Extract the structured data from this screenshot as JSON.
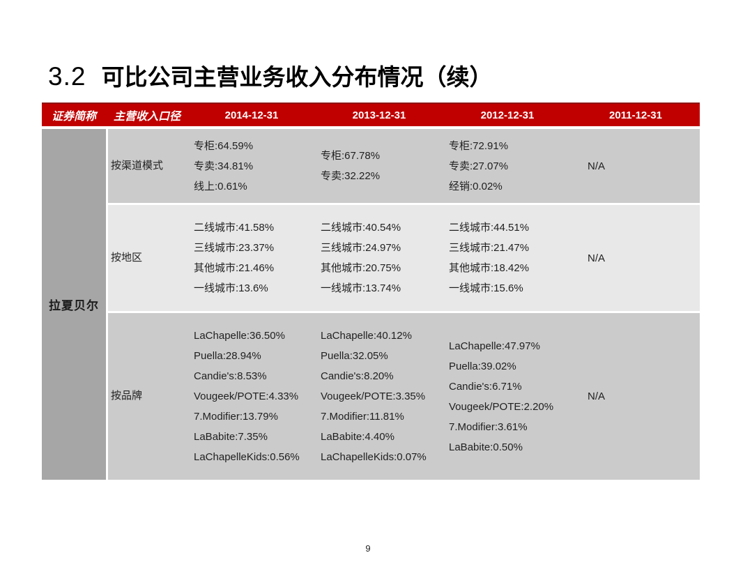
{
  "slide": {
    "title_number": "3.2",
    "title_text": "可比公司主营业务收入分布情况（续）",
    "page_number": "9"
  },
  "table": {
    "colors": {
      "header_bg": "#c00000",
      "header_border": "#8e1414",
      "header_text": "#ffffff",
      "company_col_bg": "#a6a6a6",
      "row_medium_bg": "#cbcbcb",
      "row_light_bg": "#e8e8e8",
      "body_text": "#1f1f1f"
    },
    "headers": [
      "证券简称",
      "主营收入口径",
      "2014-12-31",
      "2013-12-31",
      "2012-12-31",
      "2011-12-31"
    ],
    "company": "拉夏贝尔",
    "rows": [
      {
        "label": "按渠道模式",
        "y2014": [
          "专柜:64.59%",
          "专卖:34.81%",
          "线上:0.61%"
        ],
        "y2013": [
          "专柜:67.78%",
          "专卖:32.22%"
        ],
        "y2012": [
          "专柜:72.91%",
          "专卖:27.07%",
          "经销:0.02%"
        ],
        "y2011": [
          "N/A"
        ]
      },
      {
        "label": "按地区",
        "y2014": [
          "二线城市:41.58%",
          "三线城市:23.37%",
          "其他城市:21.46%",
          "一线城市:13.6%"
        ],
        "y2013": [
          "二线城市:40.54%",
          "三线城市:24.97%",
          "其他城市:20.75%",
          "一线城市:13.74%"
        ],
        "y2012": [
          "二线城市:44.51%",
          "三线城市:21.47%",
          "其他城市:18.42%",
          "一线城市:15.6%"
        ],
        "y2011": [
          "N/A"
        ]
      },
      {
        "label": "按品牌",
        "y2014": [
          "LaChapelle:36.50%",
          "Puella:28.94%",
          "Candie's:8.53%",
          "Vougeek/POTE:4.33%",
          "7.Modifier:13.79%",
          "LaBabite:7.35%",
          "LaChapelleKids:0.56%"
        ],
        "y2013": [
          "LaChapelle:40.12%",
          "Puella:32.05%",
          "Candie's:8.20%",
          "Vougeek/POTE:3.35%",
          "7.Modifier:11.81%",
          "LaBabite:4.40%",
          "LaChapelleKids:0.07%"
        ],
        "y2012": [
          "LaChapelle:47.97%",
          "Puella:39.02%",
          "Candie's:6.71%",
          "Vougeek/POTE:2.20%",
          "7.Modifier:3.61%",
          "LaBabite:0.50%"
        ],
        "y2011": [
          "N/A"
        ]
      }
    ]
  }
}
